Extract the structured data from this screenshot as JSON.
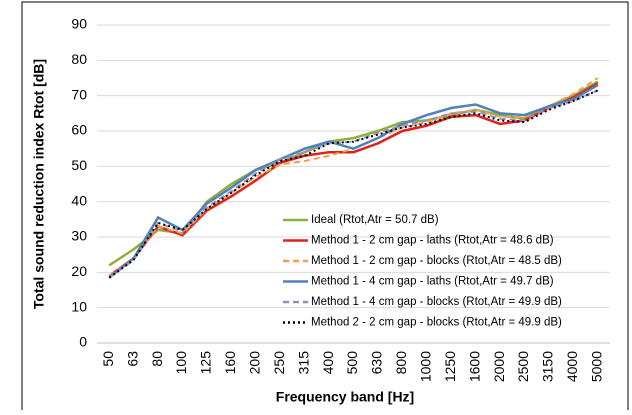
{
  "chart_data": {
    "type": "line",
    "x_label": "Frequency band [Hz]",
    "y_label": "Total sound reduction index Rtot [dB]",
    "categories": [
      "50",
      "63",
      "80",
      "100",
      "125",
      "160",
      "200",
      "250",
      "315",
      "400",
      "500",
      "630",
      "800",
      "1000",
      "1250",
      "1600",
      "2000",
      "2500",
      "3150",
      "4000",
      "5000"
    ],
    "series": [
      {
        "name": "Ideal (Rtot,Atr = 50.7 dB)",
        "color": "#8db03c",
        "dash": "solid",
        "values": [
          22,
          26.5,
          32,
          31,
          40,
          45,
          49,
          51,
          54,
          57,
          58,
          60,
          62.5,
          63,
          64.5,
          66,
          64.5,
          63.5,
          67,
          70,
          74
        ]
      },
      {
        "name": "Method 1 - 2 cm gap - laths (Rtot,Atr = 48.6 dB)",
        "color": "#e0201b",
        "dash": "solid",
        "values": [
          19,
          24,
          33,
          30.5,
          37.5,
          41.5,
          46,
          51,
          53,
          54,
          54,
          56.5,
          60,
          61.5,
          64,
          64.5,
          62,
          63,
          66.5,
          69.5,
          73.5
        ]
      },
      {
        "name": "Method 1 - 2 cm gap - blocks (Rtot,Atr = 48.5 dB)",
        "color": "#f4a04a",
        "dash": "dashed",
        "values": [
          19,
          24,
          33,
          31,
          38,
          42.5,
          47,
          50.5,
          51.5,
          53,
          55,
          58,
          61,
          62.5,
          65,
          66,
          64,
          64,
          67,
          70.5,
          75
        ]
      },
      {
        "name": "Method 1 - 4 cm gap - laths (Rtot,Atr = 49.7 dB)",
        "color": "#4f81bd",
        "dash": "solid",
        "values": [
          18.5,
          24,
          35.5,
          32,
          39.5,
          44,
          49,
          52,
          55,
          57,
          55,
          58,
          62,
          64.5,
          66.5,
          67.5,
          65,
          64.5,
          67,
          69,
          73
        ]
      },
      {
        "name": "Method 1 - 4 cm gap - blocks (Rtot,Atr = 49.9 dB)",
        "color": "#9b8cc4",
        "dash": "dashed",
        "values": [
          18.5,
          23.5,
          34,
          31.5,
          38.5,
          43,
          48,
          52,
          54,
          56.5,
          57,
          59.5,
          61.5,
          63,
          65,
          65.5,
          63.5,
          63,
          66.5,
          68.5,
          71.5
        ]
      },
      {
        "name": "Method 2 - 2 cm gap - blocks (Rtot,Atr = 49.9 dB)",
        "color": "#000000",
        "dash": "dotted",
        "values": [
          18.5,
          23.5,
          34,
          32,
          38,
          42.5,
          47.5,
          51.5,
          53,
          56.5,
          57,
          59,
          61,
          62,
          64,
          65,
          63,
          62.5,
          66,
          68.5,
          71.5
        ]
      }
    ],
    "ylim": [
      0,
      90
    ],
    "yticks": [
      0,
      10,
      20,
      30,
      40,
      50,
      60,
      70,
      80,
      90
    ],
    "grid": true
  }
}
